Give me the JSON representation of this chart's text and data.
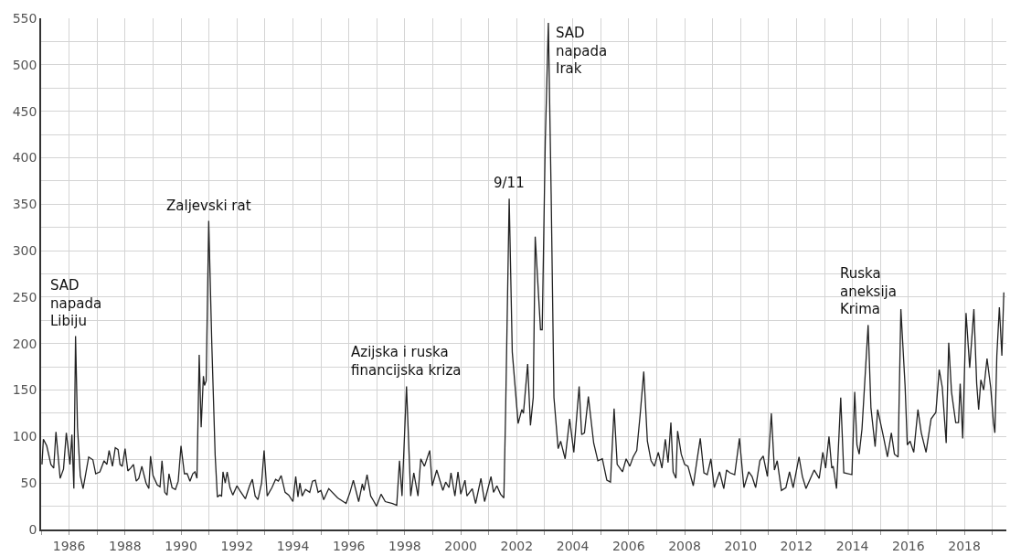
{
  "chart_data": {
    "type": "line",
    "color": "#222222",
    "grid": true,
    "marker": "none",
    "line_style": "solid",
    "x": [
      1985.03,
      1985.08,
      1985.2,
      1985.35,
      1985.45,
      1985.53,
      1985.68,
      1985.8,
      1985.9,
      1986.03,
      1986.1,
      1986.17,
      1986.23,
      1986.3,
      1986.4,
      1986.5,
      1986.7,
      1986.85,
      1986.95,
      1987.1,
      1987.25,
      1987.35,
      1987.43,
      1987.55,
      1987.65,
      1987.75,
      1987.82,
      1987.9,
      1988.0,
      1988.1,
      1988.2,
      1988.3,
      1988.4,
      1988.49,
      1988.6,
      1988.75,
      1988.85,
      1988.91,
      1989.0,
      1989.15,
      1989.25,
      1989.32,
      1989.42,
      1989.5,
      1989.57,
      1989.68,
      1989.8,
      1989.9,
      1990.0,
      1990.12,
      1990.22,
      1990.32,
      1990.42,
      1990.5,
      1990.57,
      1990.65,
      1990.72,
      1990.8,
      1990.84,
      1990.9,
      1990.99,
      1991.1,
      1991.22,
      1991.3,
      1991.38,
      1991.45,
      1991.5,
      1991.58,
      1991.65,
      1991.75,
      1991.85,
      1992.0,
      1992.1,
      1992.3,
      1992.45,
      1992.55,
      1992.65,
      1992.75,
      1992.88,
      1992.97,
      1993.08,
      1993.25,
      1993.38,
      1993.48,
      1993.58,
      1993.72,
      1993.85,
      1994.0,
      1994.1,
      1994.18,
      1994.25,
      1994.33,
      1994.45,
      1994.6,
      1994.7,
      1994.8,
      1994.9,
      1995.0,
      1995.1,
      1995.28,
      1995.6,
      1995.9,
      1996.04,
      1996.16,
      1996.35,
      1996.48,
      1996.54,
      1996.65,
      1996.78,
      1996.86,
      1996.99,
      1997.15,
      1997.3,
      1997.56,
      1997.71,
      1997.81,
      1997.9,
      1998.06,
      1998.21,
      1998.32,
      1998.47,
      1998.57,
      1998.7,
      1998.89,
      1998.98,
      1999.14,
      1999.36,
      1999.46,
      1999.58,
      1999.65,
      1999.79,
      1999.9,
      2000.0,
      2000.15,
      2000.22,
      2000.41,
      2000.53,
      2000.72,
      2000.85,
      2001.08,
      2001.17,
      2001.29,
      2001.42,
      2001.54,
      2001.6,
      2001.73,
      2001.84,
      2002.05,
      2002.18,
      2002.24,
      2002.39,
      2002.49,
      2002.59,
      2002.66,
      2002.85,
      2002.91,
      2003.02,
      2003.13,
      2003.23,
      2003.33,
      2003.48,
      2003.57,
      2003.73,
      2003.89,
      2004.04,
      2004.23,
      2004.32,
      2004.42,
      2004.56,
      2004.75,
      2004.9,
      2005.06,
      2005.22,
      2005.35,
      2005.48,
      2005.59,
      2005.78,
      2005.91,
      2006.04,
      2006.16,
      2006.29,
      2006.41,
      2006.54,
      2006.67,
      2006.8,
      2006.92,
      2007.06,
      2007.19,
      2007.31,
      2007.41,
      2007.51,
      2007.59,
      2007.69,
      2007.75,
      2007.88,
      2008.0,
      2008.12,
      2008.31,
      2008.44,
      2008.56,
      2008.69,
      2008.81,
      2008.94,
      2009.06,
      2009.25,
      2009.4,
      2009.5,
      2009.62,
      2009.79,
      2009.96,
      2010.12,
      2010.29,
      2010.41,
      2010.54,
      2010.69,
      2010.81,
      2010.96,
      2011.1,
      2011.21,
      2011.31,
      2011.46,
      2011.62,
      2011.75,
      2011.88,
      2012.09,
      2012.21,
      2012.34,
      2012.5,
      2012.63,
      2012.81,
      2012.94,
      2013.04,
      2013.16,
      2013.26,
      2013.31,
      2013.43,
      2013.58,
      2013.69,
      2013.98,
      2014.08,
      2014.16,
      2014.24,
      2014.34,
      2014.56,
      2014.66,
      2014.81,
      2014.9,
      2015.0,
      2015.12,
      2015.25,
      2015.39,
      2015.5,
      2015.63,
      2015.73,
      2015.88,
      2015.96,
      2016.06,
      2016.19,
      2016.34,
      2016.46,
      2016.63,
      2016.81,
      2016.98,
      2017.1,
      2017.21,
      2017.35,
      2017.44,
      2017.54,
      2017.69,
      2017.79,
      2017.85,
      2017.94,
      2018.06,
      2018.19,
      2018.34,
      2018.44,
      2018.51,
      2018.59,
      2018.69,
      2018.81,
      2018.94,
      2019.04,
      2019.09,
      2019.16,
      2019.25,
      2019.34,
      2019.41
    ],
    "values": [
      70,
      97,
      90,
      70,
      66,
      105,
      55,
      65,
      104,
      70,
      102,
      44,
      208,
      110,
      58,
      44,
      78,
      75,
      60,
      62,
      74,
      70,
      85,
      68,
      88,
      86,
      70,
      68,
      87,
      63,
      66,
      70,
      52,
      55,
      68,
      50,
      44,
      79,
      58,
      48,
      46,
      74,
      40,
      37,
      60,
      45,
      43,
      52,
      90,
      60,
      60,
      52,
      60,
      62,
      55,
      188,
      110,
      165,
      155,
      160,
      332,
      200,
      80,
      35,
      37,
      36,
      62,
      50,
      62,
      45,
      37,
      47,
      42,
      33,
      47,
      54,
      36,
      32,
      50,
      85,
      36,
      45,
      54,
      52,
      58,
      40,
      37,
      30,
      57,
      35,
      50,
      36,
      43,
      40,
      52,
      53,
      40,
      42,
      32,
      44,
      34,
      28,
      40,
      53,
      30,
      49,
      42,
      59,
      36,
      32,
      25,
      38,
      30,
      28,
      26,
      74,
      36,
      154,
      36,
      61,
      36,
      76,
      68,
      85,
      47,
      64,
      42,
      51,
      45,
      61,
      36,
      62,
      38,
      53,
      36,
      44,
      28,
      55,
      30,
      57,
      40,
      47,
      38,
      34,
      123,
      356,
      191,
      114,
      129,
      125,
      178,
      112,
      142,
      315,
      215,
      215,
      418,
      545,
      361,
      142,
      87,
      95,
      76,
      119,
      83,
      154,
      102,
      104,
      143,
      93,
      74,
      76,
      53,
      51,
      130,
      70,
      62,
      76,
      68,
      78,
      85,
      123,
      170,
      95,
      74,
      68,
      83,
      66,
      97,
      72,
      115,
      62,
      55,
      106,
      81,
      70,
      68,
      47,
      74,
      98,
      61,
      59,
      76,
      45,
      62,
      44,
      64,
      61,
      59,
      98,
      45,
      62,
      57,
      45,
      74,
      79,
      57,
      125,
      64,
      74,
      42,
      45,
      62,
      45,
      78,
      57,
      44,
      55,
      64,
      55,
      83,
      66,
      100,
      66,
      68,
      44,
      142,
      61,
      59,
      148,
      91,
      81,
      108,
      220,
      131,
      89,
      129,
      115,
      98,
      78,
      104,
      81,
      78,
      237,
      155,
      91,
      95,
      83,
      129,
      104,
      83,
      119,
      126,
      172,
      153,
      93,
      201,
      148,
      115,
      115,
      157,
      98,
      233,
      174,
      237,
      157,
      129,
      161,
      150,
      184,
      153,
      115,
      104,
      187,
      239,
      187,
      255
    ],
    "xlim": [
      1985,
      2019.5
    ],
    "xticks": [
      {
        "value": 1985,
        "label": null
      },
      1986,
      {
        "value": 1987,
        "label": null
      },
      1988,
      {
        "value": 1989,
        "label": null
      },
      1990,
      {
        "value": 1991,
        "label": null
      },
      1992,
      {
        "value": 1993,
        "label": null
      },
      1994,
      {
        "value": 1995,
        "label": null
      },
      1996,
      {
        "value": 1997,
        "label": null
      },
      1998,
      {
        "value": 1999,
        "label": null
      },
      2000,
      {
        "value": 2001,
        "label": null
      },
      2002,
      {
        "value": 2003,
        "label": null
      },
      2004,
      {
        "value": 2005,
        "label": null
      },
      2006,
      {
        "value": 2007,
        "label": null
      },
      2008,
      {
        "value": 2009,
        "label": null
      },
      2010,
      {
        "value": 2011,
        "label": null
      },
      2012,
      {
        "value": 2013,
        "label": null
      },
      2014,
      {
        "value": 2015,
        "label": null
      },
      2016,
      {
        "value": 2017,
        "label": null
      },
      2018,
      {
        "value": 2019,
        "label": null
      }
    ],
    "ylim": [
      0,
      550
    ],
    "yticks": [
      0,
      {
        "value": 25,
        "label": null
      },
      50,
      {
        "value": 75,
        "label": null
      },
      100,
      {
        "value": 125,
        "label": null
      },
      150,
      {
        "value": 175,
        "label": null
      },
      200,
      {
        "value": 225,
        "label": null
      },
      250,
      {
        "value": 275,
        "label": null
      },
      300,
      {
        "value": 325,
        "label": null
      },
      350,
      {
        "value": 375,
        "label": null
      },
      400,
      {
        "value": 425,
        "label": null
      },
      450,
      {
        "value": 475,
        "label": null
      },
      500,
      {
        "value": 525,
        "label": null
      },
      550
    ],
    "annotations": [
      {
        "text": "SAD\nnapada\nLibiju",
        "x": 1986.23,
        "y": 208
      },
      {
        "text": "Zaljevski rat",
        "x": 1990.99,
        "y": 332
      },
      {
        "text": "Azijska i ruska\nfinancijska kriza",
        "x": 1998.06,
        "y": 154
      },
      {
        "text": "9/11",
        "x": 2001.73,
        "y": 356
      },
      {
        "text": "SAD\nnapada\nIrak",
        "x": 2003.13,
        "y": 545
      },
      {
        "text": "Ruska\naneksija\nKrima",
        "x": 2014.56,
        "y": 220
      }
    ]
  }
}
